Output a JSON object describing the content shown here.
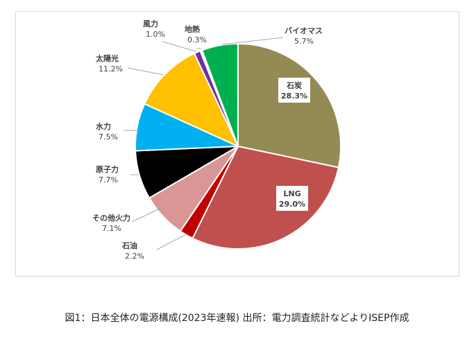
{
  "caption": "図1：日本全体の電源構成(2023年速報) 出所：電力調査統計などよりISEP作成",
  "chart_data": {
    "type": "pie",
    "title": "",
    "start_angle_deg": 0,
    "direction": "clockwise",
    "slices": [
      {
        "label": "石炭",
        "value": 28.3,
        "value_label": "28.3%",
        "color": "#948A54"
      },
      {
        "label": "LNG",
        "value": 29.0,
        "value_label": "29.0%",
        "color": "#C0504D"
      },
      {
        "label": "石油",
        "value": 2.2,
        "value_label": "2.2%",
        "color": "#C00000"
      },
      {
        "label": "その他火力",
        "value": 7.1,
        "value_label": "7.1%",
        "color": "#D99694"
      },
      {
        "label": "原子力",
        "value": 7.7,
        "value_label": "7.7%",
        "color": "#000000"
      },
      {
        "label": "水力",
        "value": 7.5,
        "value_label": "7.5%",
        "color": "#00B0F0"
      },
      {
        "label": "太陽光",
        "value": 11.2,
        "value_label": "11.2%",
        "color": "#FFC000"
      },
      {
        "label": "風力",
        "value": 1.0,
        "value_label": "1.0%",
        "color": "#7030A0"
      },
      {
        "label": "地熱",
        "value": 0.3,
        "value_label": "0.3%",
        "color": "#FFFFFF"
      },
      {
        "label": "バイオマス",
        "value": 5.7,
        "value_label": "5.7%",
        "color": "#00B050"
      }
    ]
  }
}
